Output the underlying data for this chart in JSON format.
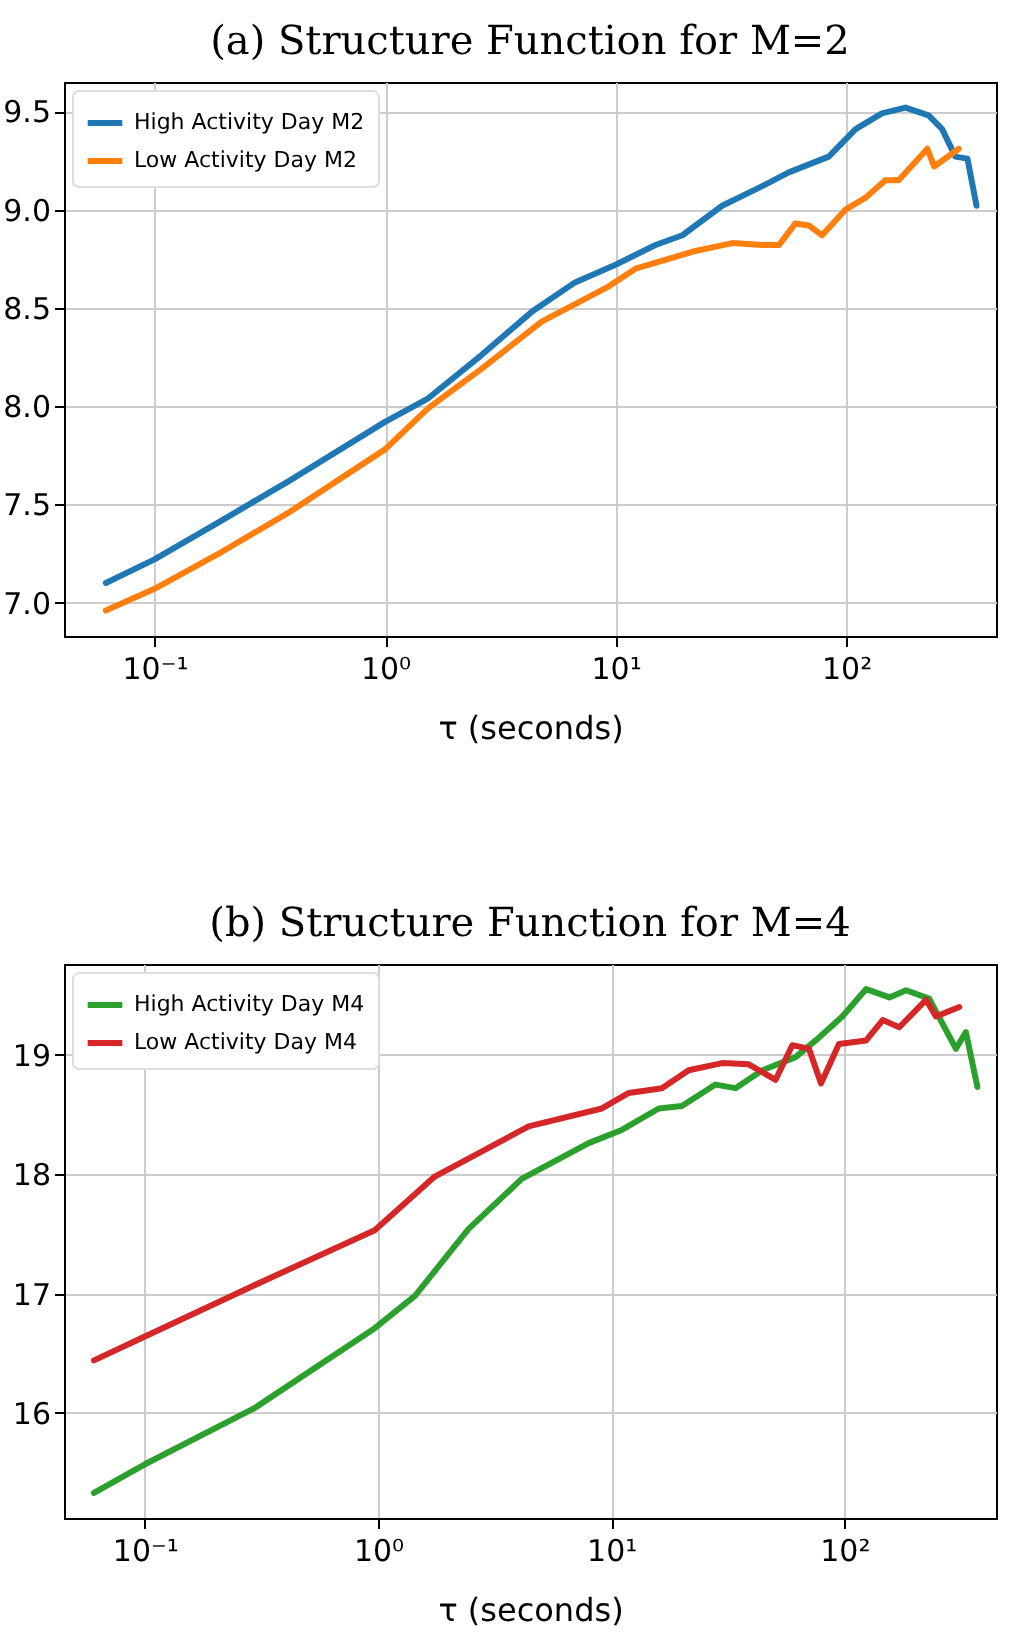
{
  "chart_data": [
    {
      "type": "line",
      "title": "(a) Structure Function for M=2",
      "xlabel": "τ (seconds)",
      "log": "x",
      "grid": true,
      "legend": "top left",
      "xlim": [
        0.0405,
        447
      ],
      "ylim": [
        6.83,
        9.65
      ],
      "xticks": [
        {
          "value": 0.1,
          "label": "10⁻¹"
        },
        {
          "value": 1,
          "label": "10⁰"
        },
        {
          "value": 10,
          "label": "10¹"
        },
        {
          "value": 100,
          "label": "10²"
        }
      ],
      "yticks": [
        {
          "value": 7,
          "label": "7.0"
        },
        {
          "value": 7.5,
          "label": "7.5"
        },
        {
          "value": 8,
          "label": "8.0"
        },
        {
          "value": 8.5,
          "label": "8.5"
        },
        {
          "value": 9,
          "label": "9.0"
        },
        {
          "value": 9.5,
          "label": "9.5"
        }
      ],
      "series": [
        {
          "name": "High Activity Day M2",
          "color": "#1f77b4",
          "x": [
            0.0615,
            0.1,
            0.197,
            0.384,
            1,
            1.54,
            2.62,
            4.33,
            6.67,
            10,
            14.9,
            19.5,
            29.0,
            43.3,
            56.4,
            84.1,
            110,
            143,
            181,
            228,
            261,
            298,
            336,
            368
          ],
          "values": [
            7.1,
            7.22,
            7.42,
            7.62,
            7.92,
            8.04,
            8.26,
            8.48,
            8.63,
            8.72,
            8.82,
            8.87,
            9.02,
            9.12,
            9.19,
            9.27,
            9.41,
            9.49,
            9.52,
            9.48,
            9.41,
            9.27,
            9.26,
            9.02
          ]
        },
        {
          "name": "Low Activity Day M2",
          "color": "#ff7f0e",
          "x": [
            0.0615,
            0.1,
            0.197,
            0.384,
            1,
            1.54,
            2.62,
            4.78,
            9.35,
            12.2,
            22.2,
            32.1,
            43.3,
            51.1,
            60.3,
            68.9,
            78.7,
            99.3,
            121,
            148,
            169,
            225,
            241,
            308
          ],
          "values": [
            6.96,
            7.07,
            7.26,
            7.46,
            7.78,
            7.99,
            8.19,
            8.43,
            8.61,
            8.7,
            8.79,
            8.83,
            8.82,
            8.82,
            8.93,
            8.92,
            8.87,
            9.0,
            9.06,
            9.15,
            9.15,
            9.31,
            9.22,
            9.31
          ]
        }
      ]
    },
    {
      "type": "line",
      "title": "(b) Structure Function for M=4",
      "xlabel": "τ (seconds)",
      "log": "x",
      "grid": true,
      "legend": "top left",
      "xlim": [
        0.045,
        447
      ],
      "ylim": [
        15.12,
        19.76
      ],
      "xticks": [
        {
          "value": 0.1,
          "label": "10⁻¹"
        },
        {
          "value": 1,
          "label": "10⁰"
        },
        {
          "value": 10,
          "label": "10¹"
        },
        {
          "value": 100,
          "label": "10²"
        }
      ],
      "yticks": [
        16,
        17,
        18,
        19
      ],
      "series": [
        {
          "name": "High Activity Day M4",
          "color": "#2ca02c",
          "x": [
            0.0605,
            0.1,
            0.295,
            0.968,
            1.44,
            2.44,
            4.13,
            8.0,
            11.1,
            16.0,
            20.1,
            28.0,
            34.1,
            44.5,
            61.8,
            75.3,
            98,
            124,
            156,
            184,
            231,
            301,
            332,
            372
          ],
          "values": [
            15.33,
            15.57,
            16.04,
            16.71,
            16.98,
            17.54,
            17.96,
            18.26,
            18.37,
            18.55,
            18.57,
            18.75,
            18.72,
            18.87,
            18.98,
            19.12,
            19.32,
            19.55,
            19.48,
            19.54,
            19.47,
            19.05,
            19.19,
            18.73
          ]
        },
        {
          "name": "Low Activity Day M4",
          "color": "#d62728",
          "x": [
            0.0605,
            0.1,
            0.295,
            0.968,
            1.75,
            4.42,
            9.12,
            11.9,
            16.5,
            21.5,
            29.9,
            38.9,
            50.7,
            59.8,
            70.5,
            79.4,
            94.8,
            124,
            146,
            172,
            224,
            247,
            311
          ],
          "values": [
            16.44,
            16.64,
            17.07,
            17.53,
            17.98,
            18.4,
            18.55,
            18.68,
            18.72,
            18.87,
            18.93,
            18.92,
            18.79,
            19.08,
            19.05,
            18.76,
            19.09,
            19.12,
            19.29,
            19.23,
            19.46,
            19.32,
            19.4
          ]
        }
      ]
    }
  ]
}
